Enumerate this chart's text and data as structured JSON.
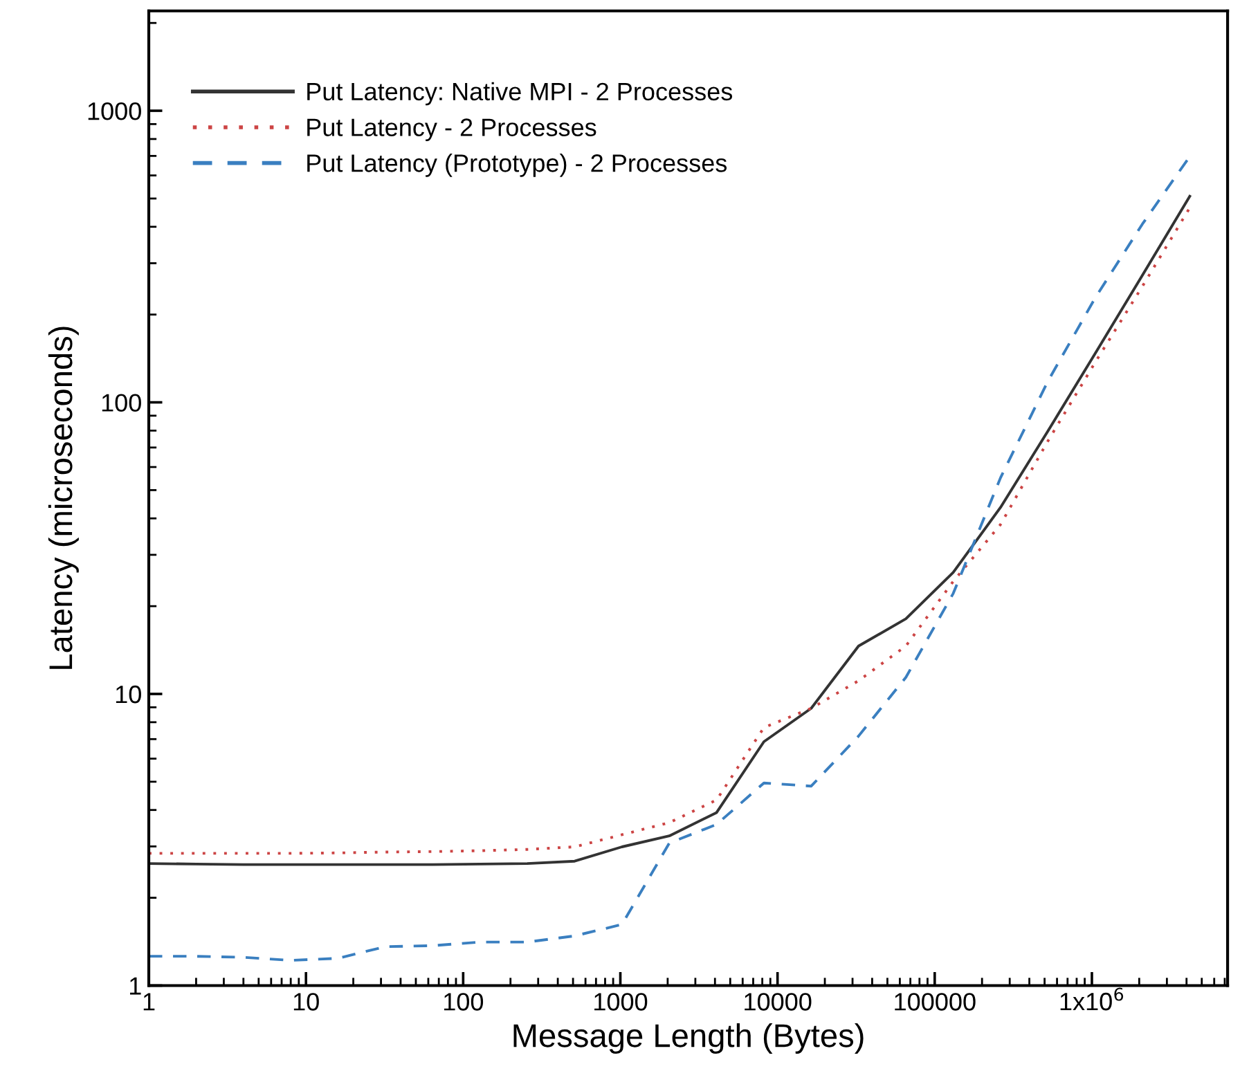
{
  "chart_data": {
    "type": "line",
    "xlabel": "Message Length (Bytes)",
    "ylabel": "Latency (microseconds)",
    "log": "xy",
    "legend": "top left",
    "grid": false,
    "marker": "none",
    "x": [
      1,
      2,
      4,
      8,
      16,
      32,
      64,
      128,
      256,
      512,
      1024,
      2048,
      4096,
      8192,
      16384,
      32768,
      65536,
      131072,
      262144,
      524288,
      1048576,
      2097152,
      4194304
    ],
    "xlim": [
      1,
      7300000
    ],
    "xticks": [
      1,
      10,
      100,
      1000,
      10000,
      100000,
      {
        "value": 1000000,
        "label": "1x10$^{6}$"
      }
    ],
    "ylim": [
      1,
      2200
    ],
    "yticks": [
      1,
      10,
      100,
      1000
    ],
    "series": [
      {
        "name": "Put Latency: Native MPI - 2 Processes",
        "color": "#333333",
        "line_style": "solid",
        "values": [
          2.62,
          2.61,
          2.6,
          2.6,
          2.6,
          2.6,
          2.6,
          2.61,
          2.62,
          2.67,
          2.99,
          3.26,
          3.92,
          6.86,
          8.93,
          14.6,
          18.1,
          26.1,
          43.6,
          79.6,
          147,
          273,
          509
        ]
      },
      {
        "name": "Put Latency - 2 Processes",
        "color": "#cc4444",
        "line_style": "dotted",
        "values": [
          2.84,
          2.84,
          2.84,
          2.84,
          2.85,
          2.87,
          2.88,
          2.9,
          2.93,
          2.99,
          3.29,
          3.62,
          4.33,
          7.67,
          8.93,
          11.1,
          14.6,
          24.3,
          38.1,
          73.6,
          137,
          250,
          465
        ]
      },
      {
        "name": "Put Latency (Prototype) - 2 Processes",
        "color": "#3a7fc0",
        "line_style": "dashed",
        "values": [
          1.26,
          1.26,
          1.25,
          1.22,
          1.24,
          1.36,
          1.37,
          1.41,
          1.41,
          1.48,
          1.62,
          3.08,
          3.57,
          4.95,
          4.83,
          7.17,
          11.4,
          22.1,
          55.1,
          118,
          228,
          409,
          697
        ]
      }
    ]
  }
}
